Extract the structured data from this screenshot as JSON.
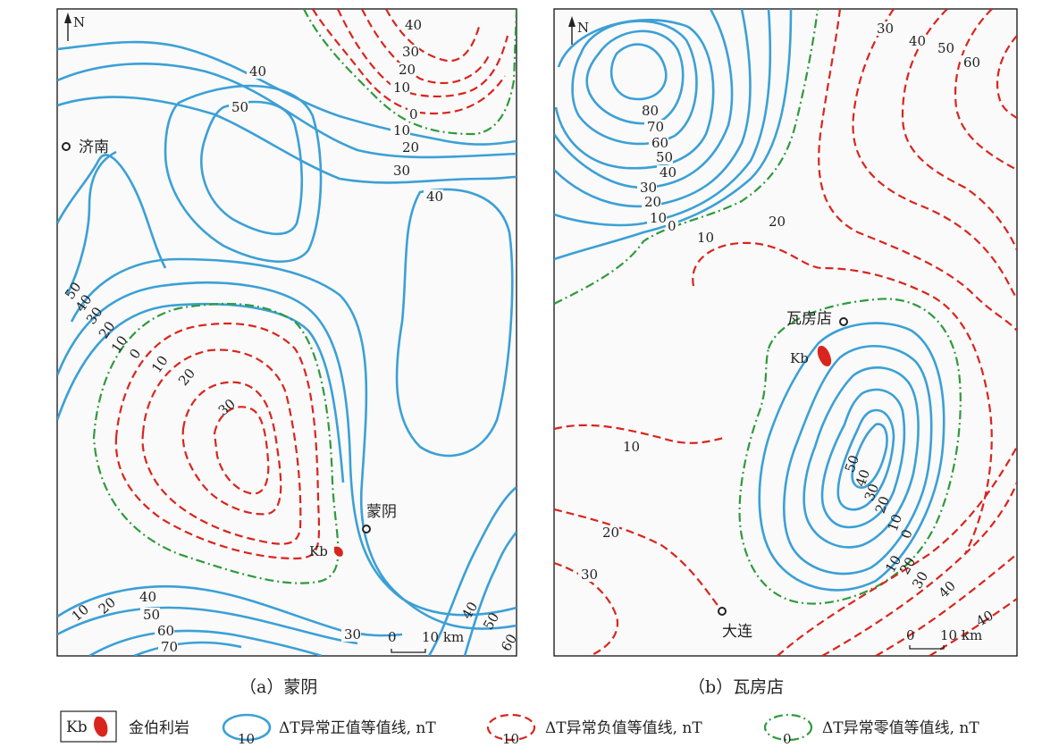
{
  "panels": [
    {
      "caption": "（a）蒙阴",
      "north": "N",
      "cities": [
        "济南",
        "蒙阴"
      ],
      "kb": "Kb",
      "scale": {
        "start": "0",
        "end": "10 km"
      },
      "contour_labels": {
        "negative": [
          "40",
          "30",
          "20",
          "10",
          "10",
          "20",
          "30"
        ],
        "zero": [
          "0",
          "0"
        ],
        "positive": [
          "10",
          "20",
          "30",
          "40",
          "50",
          "40",
          "50",
          "40",
          "30",
          "20",
          "10",
          "10",
          "20",
          "40",
          "50",
          "60",
          "70",
          "30",
          "40",
          "50",
          "60"
        ]
      }
    },
    {
      "caption": "（b）瓦房店",
      "north": "N",
      "cities": [
        "瓦房店",
        "大连"
      ],
      "kb": "Kb",
      "scale": {
        "start": "0",
        "end": "10 km"
      },
      "contour_labels": {
        "positive": [
          "80",
          "70",
          "60",
          "50",
          "40",
          "30",
          "20",
          "10",
          "50",
          "40",
          "30",
          "20",
          "10"
        ],
        "zero": [
          "0",
          "0"
        ],
        "negative": [
          "30",
          "40",
          "50",
          "60",
          "10",
          "20",
          "10",
          "20",
          "30",
          "10",
          "20",
          "30",
          "40",
          "40"
        ]
      }
    }
  ],
  "legend": {
    "kb_box": "Kb",
    "kb_text": "金伯利岩",
    "pos_value": "10",
    "pos_text": "ΔT异常正值等值线, nT",
    "neg_value": "10",
    "neg_text": "ΔT异常负值等值线, nT",
    "zero_value": "0",
    "zero_text": "ΔT异常零值等值线, nT"
  },
  "colors": {
    "positive": "#3ba0d6",
    "negative": "#d9251d",
    "zero": "#2f9a3c",
    "kimberlite": "#d9251d"
  }
}
